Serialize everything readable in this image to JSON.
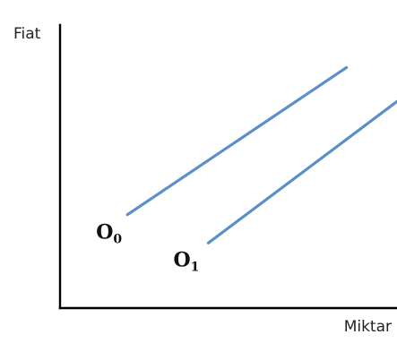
{
  "chart_data": {
    "type": "line",
    "ylabel": "Fiat",
    "xlabel": "Miktar",
    "axis_color": "#000000",
    "line_color": "#5b8fc9",
    "series": [
      {
        "name": "O",
        "subscript": "0",
        "x": [
          0.2,
          0.85
        ],
        "y": [
          0.33,
          0.85
        ]
      },
      {
        "name": "O",
        "subscript": "1",
        "x": [
          0.44,
          1.0
        ],
        "y": [
          0.23,
          0.73
        ]
      }
    ],
    "xlim": [
      0,
      1
    ],
    "ylim": [
      0,
      1
    ],
    "grid": false
  }
}
